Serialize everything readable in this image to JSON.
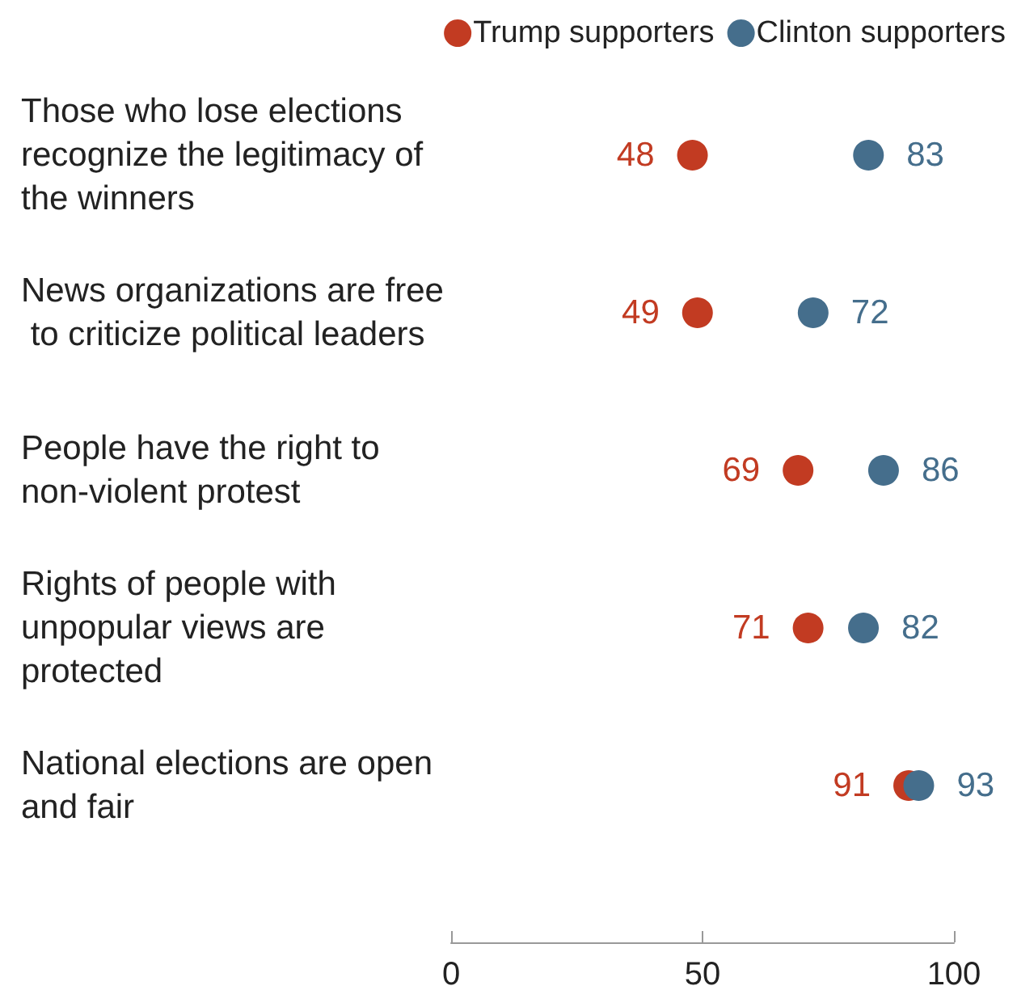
{
  "chart_data": {
    "type": "scatter",
    "orientation": "horizontal",
    "categories": [
      "Those who lose elections recognize the legitimacy of the winners",
      "News organizations are free to criticize political leaders",
      "People have the right to non-violent protest",
      "Rights of people with unpopular views are protected",
      "National elections are open and fair"
    ],
    "series": [
      {
        "name": "Trump supporters",
        "color": "#c23b22",
        "values": [
          48,
          49,
          69,
          71,
          91
        ]
      },
      {
        "name": "Clinton supporters",
        "color": "#456e8c",
        "values": [
          83,
          72,
          86,
          82,
          93
        ]
      }
    ],
    "xlim": [
      0,
      100
    ],
    "xticks": [
      0,
      50,
      100
    ],
    "data_labels": true,
    "legend": "top right",
    "marker": "circle"
  }
}
